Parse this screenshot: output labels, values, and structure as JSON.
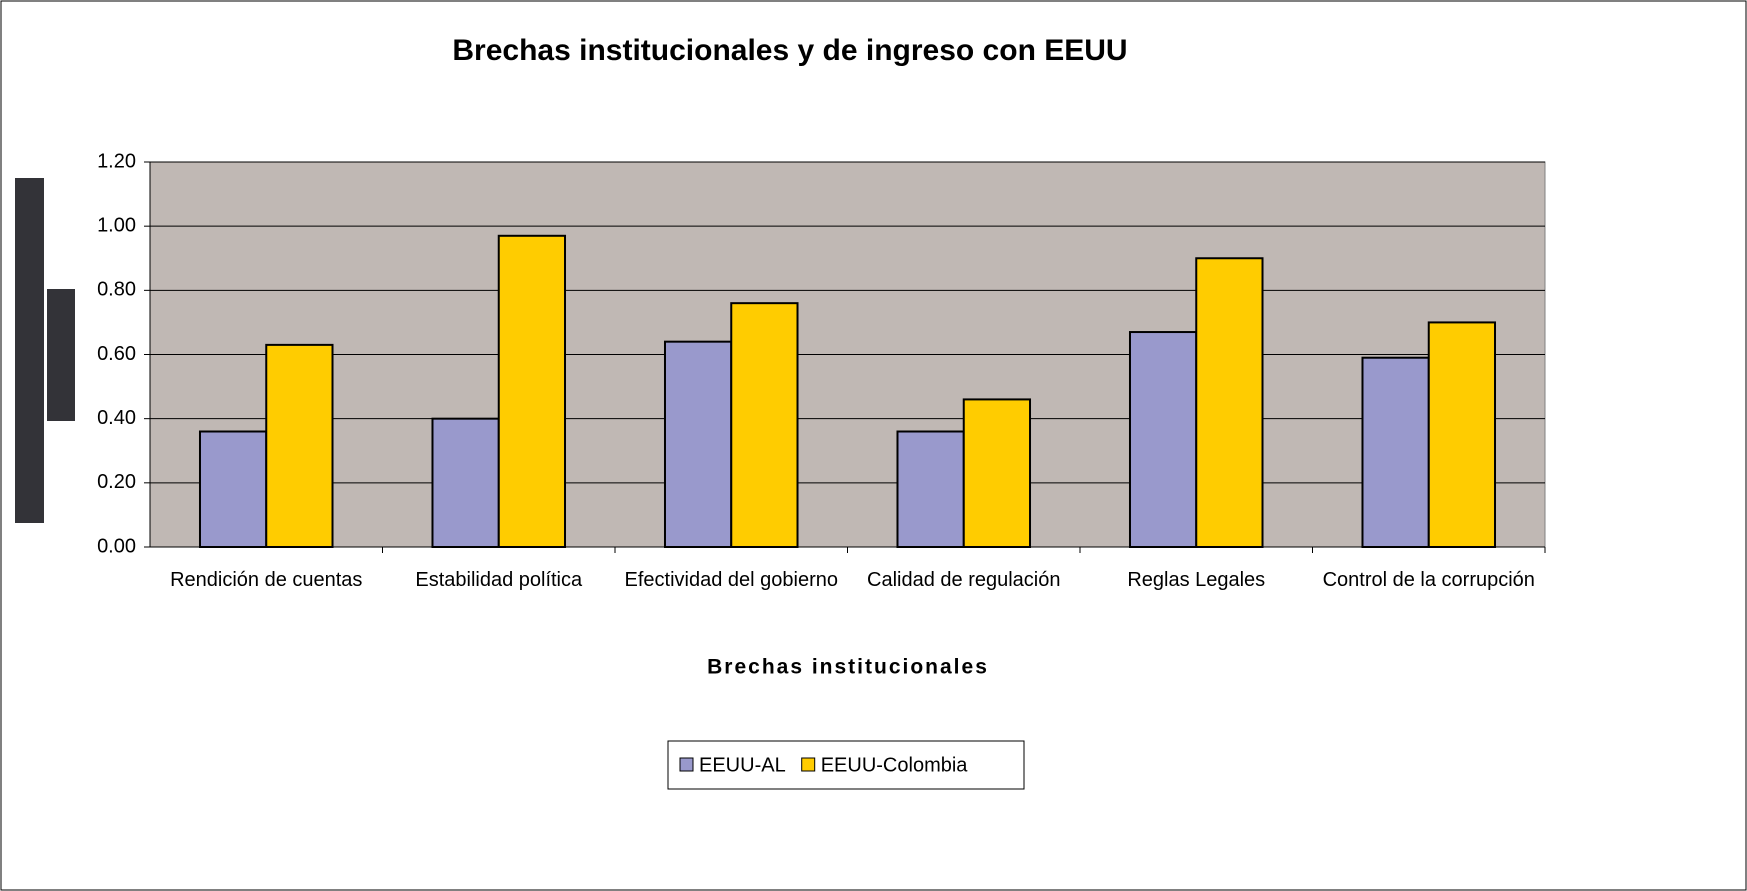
{
  "chart_data": {
    "type": "bar",
    "title": "Brechas institucionales y de ingreso con EEUU",
    "x_label": "Brechas institucionales",
    "categories": [
      "Rendición de cuentas",
      "Estabilidad política",
      "Efectividad del gobierno",
      "Calidad de regulación",
      "Reglas Legales",
      "Control de la corrupción"
    ],
    "series": [
      {
        "name": "EEUU-AL",
        "color": "#9999cc",
        "values": [
          0.36,
          0.4,
          0.64,
          0.36,
          0.67,
          0.59
        ]
      },
      {
        "name": "EEUU-Colombia",
        "color": "#ffcc00",
        "values": [
          0.63,
          0.97,
          0.76,
          0.46,
          0.9,
          0.7
        ]
      }
    ],
    "ylim": [
      0,
      1.2
    ],
    "yticks": [
      {
        "value": 0,
        "label": "0.00"
      },
      {
        "value": 0.2,
        "label": "0.20"
      },
      {
        "value": 0.4,
        "label": "0.40"
      },
      {
        "value": 0.6,
        "label": "0.60"
      },
      {
        "value": 0.8,
        "label": "0.80"
      },
      {
        "value": 1.0,
        "label": "1.00"
      },
      {
        "value": 1.2,
        "label": "1.20"
      }
    ],
    "grid": true,
    "legend": "bottom"
  }
}
